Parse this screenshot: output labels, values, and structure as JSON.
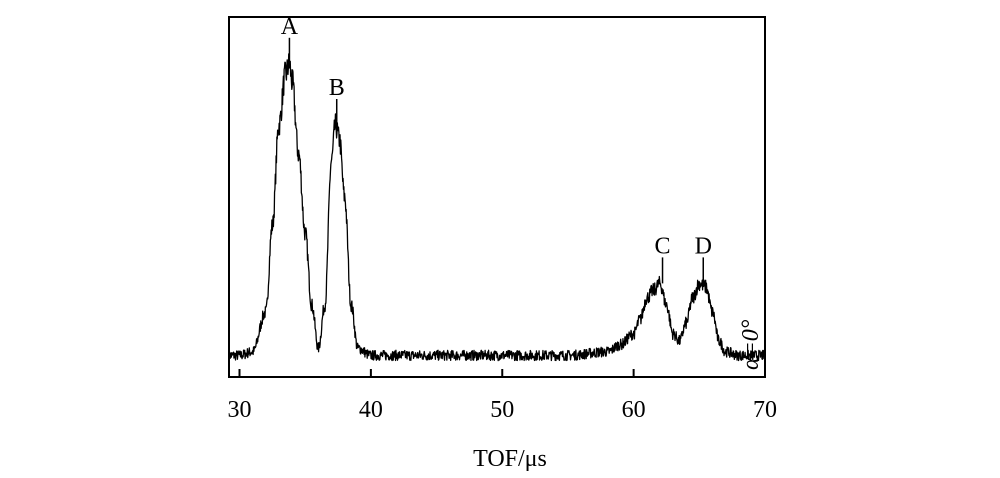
{
  "chart_data": {
    "type": "line",
    "title": "",
    "xlabel": "TOF/μs",
    "ylabel": "",
    "xlim": [
      29.2,
      70
    ],
    "ylim": [
      0,
      1
    ],
    "xticks": [
      30,
      40,
      50,
      60,
      70
    ],
    "xtick_labels": [
      "30",
      "40",
      "50",
      "60",
      "70"
    ],
    "yticks": [],
    "grid": false,
    "legend": "none",
    "line_color": "#000000",
    "series": [
      {
        "x": [
          29.2,
          30,
          31,
          32,
          32.5,
          33,
          33.5,
          33.8,
          34,
          34.5,
          35,
          35.5,
          36,
          36.5,
          37,
          37.3,
          37.6,
          38,
          38.5,
          39,
          40,
          45,
          50,
          55,
          58,
          59,
          60,
          60.5,
          61,
          61.5,
          62,
          62.5,
          63,
          63.5,
          64,
          64.5,
          65,
          65.5,
          66,
          66.5,
          67,
          68,
          70
        ],
        "values": [
          0.06,
          0.06,
          0.07,
          0.18,
          0.42,
          0.7,
          0.84,
          0.87,
          0.82,
          0.62,
          0.4,
          0.2,
          0.08,
          0.2,
          0.6,
          0.7,
          0.66,
          0.5,
          0.2,
          0.08,
          0.06,
          0.06,
          0.06,
          0.06,
          0.07,
          0.09,
          0.12,
          0.16,
          0.22,
          0.24,
          0.26,
          0.2,
          0.12,
          0.1,
          0.15,
          0.22,
          0.26,
          0.25,
          0.18,
          0.1,
          0.07,
          0.06,
          0.06
        ]
      }
    ],
    "annotations": [
      {
        "text": "A",
        "x": 33.8,
        "y": 0.87
      },
      {
        "text": "B",
        "x": 37.4,
        "y": 0.7
      },
      {
        "text": "C",
        "x": 62.2,
        "y": 0.26
      },
      {
        "text": "D",
        "x": 65.3,
        "y": 0.26
      }
    ],
    "inset_text": "α=0°"
  }
}
